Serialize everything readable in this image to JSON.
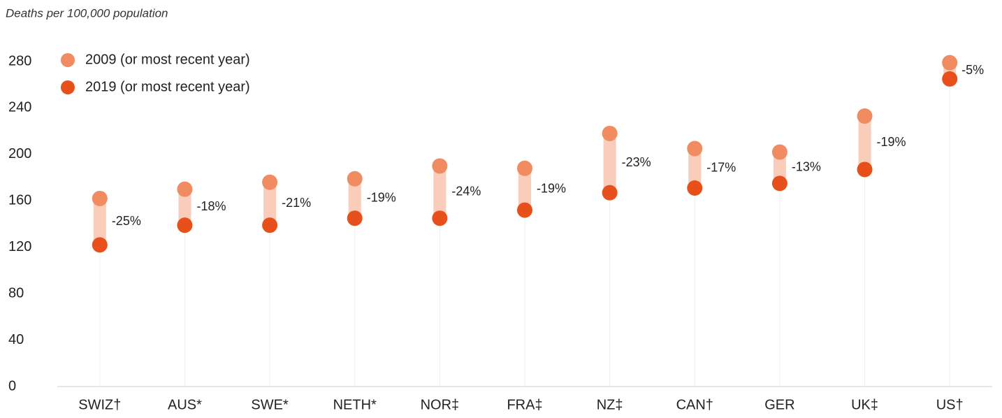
{
  "chart_data": {
    "type": "dumbbell",
    "title": "Deaths per 100,000 population",
    "categories": [
      "SWIZ†",
      "AUS*",
      "SWE*",
      "NETH*",
      "NOR‡",
      "FRA‡",
      "NZ‡",
      "CAN†",
      "GER",
      "UK‡",
      "US†"
    ],
    "series": [
      {
        "name": "2009 (or most recent year)",
        "color": "#f08b62",
        "values": [
          162,
          170,
          176,
          179,
          190,
          188,
          218,
          205,
          202,
          233,
          279
        ]
      },
      {
        "name": "2019 (or most recent year)",
        "color": "#e8501b",
        "values": [
          122,
          139,
          139,
          145,
          145,
          152,
          167,
          171,
          175,
          187,
          265
        ]
      }
    ],
    "change_labels": [
      "-25%",
      "-18%",
      "-21%",
      "-19%",
      "-24%",
      "-19%",
      "-23%",
      "-17%",
      "-13%",
      "-19%",
      "-5%"
    ],
    "connector_color": "#f9cdb9",
    "ylim": [
      0,
      280
    ],
    "yticks": [
      0,
      40,
      80,
      120,
      160,
      200,
      240,
      280
    ],
    "legend": "top-left"
  }
}
